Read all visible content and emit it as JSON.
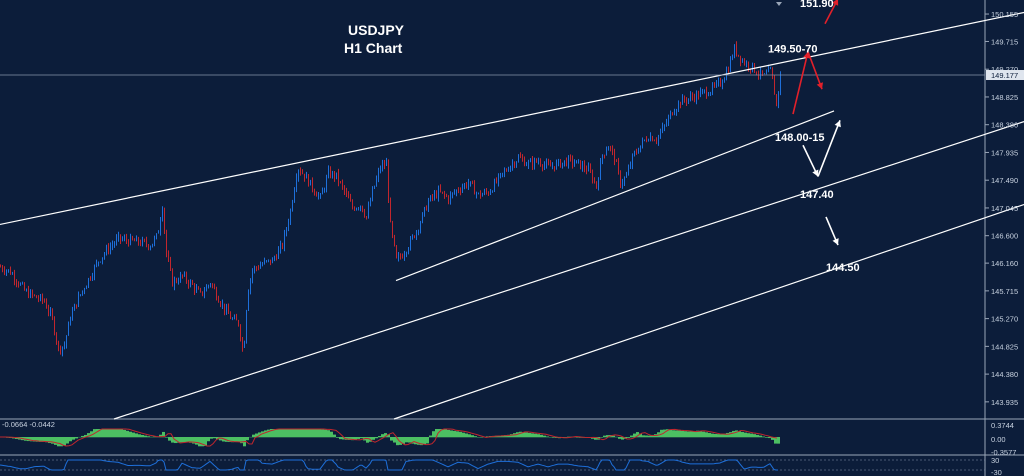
{
  "chart_data": {
    "type": "candlestick",
    "symbol": "USDJPY",
    "timeframe_label": "H1 Chart",
    "ylim": [
      143.66,
      150.38
    ],
    "y_ticks": [
      "150.155",
      "149.715",
      "149.270",
      "148.825",
      "148.380",
      "147.935",
      "147.490",
      "147.045",
      "146.600",
      "146.160",
      "145.715",
      "145.270",
      "144.825",
      "144.380",
      "143.935"
    ],
    "current_price": "149.177",
    "price_path": [
      [
        0,
        146.1
      ],
      [
        10,
        146.02
      ],
      [
        18,
        145.85
      ],
      [
        25,
        145.7
      ],
      [
        34,
        145.62
      ],
      [
        44,
        145.55
      ],
      [
        52,
        145.25
      ],
      [
        58,
        144.78
      ],
      [
        64,
        144.85
      ],
      [
        70,
        145.3
      ],
      [
        78,
        145.6
      ],
      [
        88,
        145.9
      ],
      [
        98,
        146.2
      ],
      [
        108,
        146.4
      ],
      [
        118,
        146.55
      ],
      [
        128,
        146.52
      ],
      [
        138,
        146.5
      ],
      [
        150,
        146.45
      ],
      [
        157,
        146.6
      ],
      [
        162,
        147.1
      ],
      [
        166,
        146.3
      ],
      [
        172,
        145.85
      ],
      [
        182,
        145.95
      ],
      [
        192,
        145.8
      ],
      [
        200,
        145.65
      ],
      [
        210,
        145.85
      ],
      [
        218,
        145.6
      ],
      [
        225,
        145.4
      ],
      [
        232,
        145.25
      ],
      [
        238,
        145.2
      ],
      [
        243,
        144.7
      ],
      [
        247,
        145.7
      ],
      [
        252,
        146.05
      ],
      [
        262,
        146.15
      ],
      [
        272,
        146.2
      ],
      [
        282,
        146.45
      ],
      [
        290,
        147.0
      ],
      [
        297,
        147.7
      ],
      [
        305,
        147.55
      ],
      [
        313,
        147.35
      ],
      [
        320,
        147.2
      ],
      [
        328,
        147.6
      ],
      [
        336,
        147.55
      ],
      [
        344,
        147.3
      ],
      [
        352,
        147.05
      ],
      [
        360,
        147.1
      ],
      [
        366,
        146.9
      ],
      [
        372,
        147.3
      ],
      [
        380,
        147.7
      ],
      [
        386,
        147.75
      ],
      [
        390,
        146.75
      ],
      [
        396,
        146.2
      ],
      [
        402,
        146.3
      ],
      [
        410,
        146.5
      ],
      [
        418,
        146.75
      ],
      [
        428,
        147.15
      ],
      [
        438,
        147.3
      ],
      [
        448,
        147.2
      ],
      [
        458,
        147.35
      ],
      [
        468,
        147.45
      ],
      [
        478,
        147.25
      ],
      [
        488,
        147.3
      ],
      [
        498,
        147.5
      ],
      [
        508,
        147.7
      ],
      [
        518,
        147.85
      ],
      [
        528,
        147.75
      ],
      [
        538,
        147.8
      ],
      [
        548,
        147.7
      ],
      [
        558,
        147.75
      ],
      [
        568,
        147.8
      ],
      [
        578,
        147.75
      ],
      [
        588,
        147.65
      ],
      [
        596,
        147.4
      ],
      [
        602,
        147.9
      ],
      [
        608,
        148.05
      ],
      [
        614,
        147.85
      ],
      [
        620,
        147.45
      ],
      [
        626,
        147.55
      ],
      [
        632,
        147.85
      ],
      [
        640,
        148.05
      ],
      [
        648,
        148.2
      ],
      [
        656,
        148.15
      ],
      [
        664,
        148.35
      ],
      [
        672,
        148.6
      ],
      [
        680,
        148.75
      ],
      [
        688,
        148.8
      ],
      [
        696,
        148.85
      ],
      [
        704,
        148.9
      ],
      [
        712,
        148.95
      ],
      [
        720,
        149.05
      ],
      [
        728,
        149.3
      ],
      [
        734,
        149.6
      ],
      [
        740,
        149.45
      ],
      [
        746,
        149.35
      ],
      [
        752,
        149.3
      ],
      [
        758,
        149.2
      ],
      [
        764,
        149.15
      ],
      [
        770,
        149.25
      ],
      [
        774,
        148.9
      ],
      [
        776,
        148.7
      ],
      [
        780,
        149.177
      ]
    ],
    "channel_lines": [
      {
        "x": [
          0,
          1024
        ],
        "y": [
          146.78,
          150.18
        ]
      },
      {
        "x": [
          396,
          834
        ],
        "y": [
          145.88,
          148.6
        ]
      },
      {
        "x": [
          114,
          1024
        ],
        "y": [
          143.66,
          148.43
        ]
      },
      {
        "x": [
          394,
          1024
        ],
        "y": [
          143.66,
          147.1
        ]
      }
    ],
    "horizontal_line": 149.177,
    "annotations": [
      {
        "text": "151.90",
        "x": 800,
        "y": 150.33
      },
      {
        "text": "149.50-70",
        "x": 768,
        "y": 149.6
      },
      {
        "text": "148.00-15",
        "x": 775,
        "y": 148.18
      },
      {
        "text": "147.40",
        "x": 800,
        "y": 147.27
      },
      {
        "text": "144.50",
        "x": 826,
        "y": 146.1
      }
    ],
    "arrows": [
      {
        "color": "#e2202a",
        "from": [
          825,
          150.0
        ],
        "to": [
          838,
          150.4
        ]
      },
      {
        "color": "#e2202a",
        "from": [
          793,
          148.55
        ],
        "to": [
          808,
          149.55
        ]
      },
      {
        "color": "#e2202a",
        "from": [
          808,
          149.55
        ],
        "to": [
          822,
          148.95
        ]
      },
      {
        "color": "#ffffff",
        "from": [
          803,
          148.05
        ],
        "to": [
          818,
          147.55
        ]
      },
      {
        "color": "#ffffff",
        "from": [
          818,
          147.55
        ],
        "to": [
          840,
          148.45
        ]
      },
      {
        "color": "#ffffff",
        "from": [
          826,
          146.9
        ],
        "to": [
          838,
          146.45
        ]
      }
    ],
    "indicator1": {
      "label": "-0.0664 -0.0442",
      "ticks": [
        "0.3744",
        "0.00",
        "-0.3577"
      ]
    },
    "indicator2": {
      "ticks": [
        "30",
        "-30"
      ]
    },
    "colors": {
      "background": "#0c1d3a",
      "bull": "#1e6fd9",
      "bear": "#c1262d",
      "line": "#ffffff",
      "hist": "#4cbf62",
      "signal": "#c1262d"
    }
  }
}
